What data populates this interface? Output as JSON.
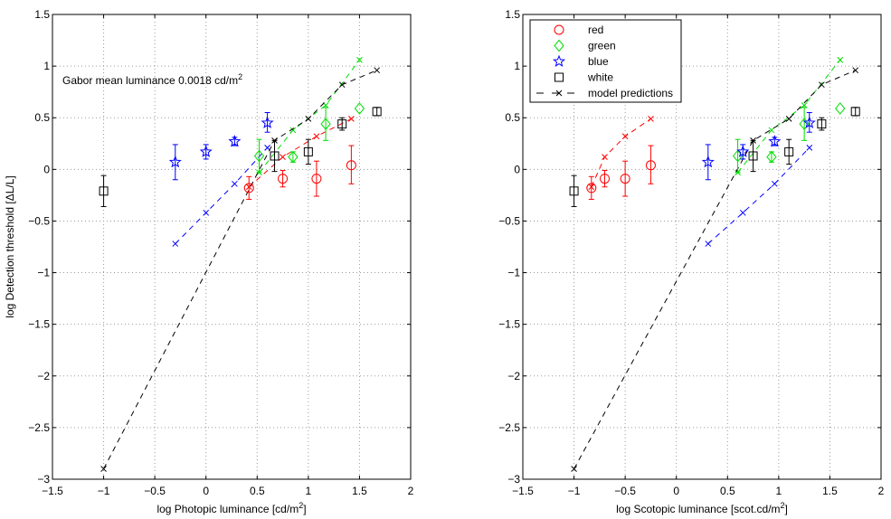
{
  "chart_data": [
    {
      "type": "scatter",
      "xlabel": "log Photopic luminance [cd/m",
      "xlabel_sup": "2",
      "xlabel_end": "]",
      "ylabel": "log Detection threshold [ΔL/L]",
      "annotation": "Gabor mean luminance 0.0018 cd/m",
      "annotation_sup": "2",
      "xlim": [
        -1.5,
        2
      ],
      "ylim": [
        -3,
        1.5
      ],
      "xticks": [
        "−1.5",
        "−1",
        "−0.5",
        "0",
        "0.5",
        "1",
        "1.5",
        "2"
      ],
      "xtick_values": [
        -1.5,
        -1,
        -0.5,
        0,
        0.5,
        1,
        1.5,
        2
      ],
      "yticks": [
        "1.5",
        "1",
        "0.5",
        "0",
        "−0.5",
        "−1",
        "−1.5",
        "−2",
        "−2.5",
        "−3"
      ],
      "ytick_values": [
        1.5,
        1,
        0.5,
        0,
        -0.5,
        -1,
        -1.5,
        -2,
        -2.5,
        -3
      ],
      "grid": true,
      "legend": false,
      "series": [
        {
          "name": "red",
          "color": "#ff0000",
          "marker": "circle",
          "x": [
            0.42,
            0.75,
            1.08,
            1.42
          ],
          "y": [
            -0.18,
            -0.09,
            -0.09,
            0.04
          ],
          "err_lo": [
            0.11,
            0.08,
            0.17,
            0.18
          ],
          "err_hi": [
            0.11,
            0.08,
            0.17,
            0.19
          ]
        },
        {
          "name": "green",
          "color": "#00dd00",
          "marker": "diamond",
          "x": [
            0.52,
            0.85,
            1.17,
            1.5
          ],
          "y": [
            0.13,
            0.12,
            0.44,
            0.59
          ],
          "err_lo": [
            0.16,
            0.05,
            0.16,
            0.0
          ],
          "err_hi": [
            0.16,
            0.05,
            0.16,
            0.0
          ]
        },
        {
          "name": "blue",
          "color": "#0000ff",
          "marker": "star",
          "x": [
            -0.3,
            0.0,
            0.28,
            0.6
          ],
          "y": [
            0.07,
            0.17,
            0.27,
            0.45
          ],
          "err_lo": [
            0.17,
            0.07,
            0.04,
            0.09
          ],
          "err_hi": [
            0.17,
            0.07,
            0.04,
            0.1
          ]
        },
        {
          "name": "white",
          "color": "#000000",
          "marker": "square",
          "x": [
            -1.0,
            0.67,
            1.0,
            1.33,
            1.67
          ],
          "y": [
            -0.21,
            0.13,
            0.17,
            0.44,
            0.56
          ],
          "err_lo": [
            0.15,
            0.15,
            0.12,
            0.06,
            0.04
          ],
          "err_hi": [
            0.15,
            0.15,
            0.12,
            0.06,
            0.04
          ]
        }
      ],
      "model": [
        {
          "name": "red-model",
          "color": "#ff0000",
          "x": [
            0.42,
            0.75,
            1.08,
            1.42
          ],
          "y": [
            -0.17,
            0.12,
            0.32,
            0.49
          ]
        },
        {
          "name": "green-model",
          "color": "#00dd00",
          "x": [
            0.52,
            0.85,
            1.17,
            1.5
          ],
          "y": [
            -0.03,
            0.38,
            0.62,
            1.06
          ]
        },
        {
          "name": "blue-model",
          "color": "#0000ff",
          "x": [
            -0.3,
            0.0,
            0.28,
            0.6
          ],
          "y": [
            -0.72,
            -0.42,
            -0.14,
            0.21
          ]
        },
        {
          "name": "white-model",
          "color": "#000000",
          "x": [
            -1.0,
            0.67,
            1.0,
            1.33,
            1.67
          ],
          "y": [
            -2.9,
            0.28,
            0.49,
            0.82,
            0.96
          ]
        }
      ]
    },
    {
      "type": "scatter",
      "xlabel": "log Scotopic luminance [scot.cd/m",
      "xlabel_sup": "2",
      "xlabel_end": "]",
      "xlim": [
        -1.5,
        2
      ],
      "ylim": [
        -3,
        1.5
      ],
      "xticks": [
        "−1.5",
        "−1",
        "−0.5",
        "0",
        "0.5",
        "1",
        "1.5",
        "2"
      ],
      "xtick_values": [
        -1.5,
        -1,
        -0.5,
        0,
        0.5,
        1,
        1.5,
        2
      ],
      "yticks": [
        "1.5",
        "1",
        "0.5",
        "0",
        "−0.5",
        "−1",
        "−1.5",
        "−2",
        "−2.5",
        "−3"
      ],
      "ytick_values": [
        1.5,
        1,
        0.5,
        0,
        -0.5,
        -1,
        -1.5,
        -2,
        -2.5,
        -3
      ],
      "grid": true,
      "legend": "top-left",
      "legend_entries": [
        {
          "label": "red",
          "color": "#ff0000",
          "marker": "circle"
        },
        {
          "label": "green",
          "color": "#00dd00",
          "marker": "diamond"
        },
        {
          "label": "blue",
          "color": "#0000ff",
          "marker": "star"
        },
        {
          "label": "white",
          "color": "#000000",
          "marker": "square"
        },
        {
          "label": "model predictions",
          "color": "#000000",
          "marker": "x-dashed"
        }
      ],
      "series": [
        {
          "name": "red",
          "color": "#ff0000",
          "marker": "circle",
          "x": [
            -0.83,
            -0.7,
            -0.5,
            -0.25
          ],
          "y": [
            -0.18,
            -0.09,
            -0.09,
            0.04
          ],
          "err_lo": [
            0.11,
            0.08,
            0.17,
            0.18
          ],
          "err_hi": [
            0.11,
            0.08,
            0.17,
            0.19
          ]
        },
        {
          "name": "green",
          "color": "#00dd00",
          "marker": "diamond",
          "x": [
            0.6,
            0.93,
            1.25,
            1.6
          ],
          "y": [
            0.13,
            0.12,
            0.44,
            0.59
          ],
          "err_lo": [
            0.16,
            0.05,
            0.16,
            0.0
          ],
          "err_hi": [
            0.16,
            0.05,
            0.16,
            0.0
          ]
        },
        {
          "name": "blue",
          "color": "#0000ff",
          "marker": "star",
          "x": [
            0.31,
            0.65,
            0.96,
            1.3
          ],
          "y": [
            0.07,
            0.17,
            0.27,
            0.45
          ],
          "err_lo": [
            0.17,
            0.07,
            0.04,
            0.09
          ],
          "err_hi": [
            0.17,
            0.07,
            0.04,
            0.1
          ]
        },
        {
          "name": "white",
          "color": "#000000",
          "marker": "square",
          "x": [
            -1.0,
            0.75,
            1.1,
            1.42,
            1.75
          ],
          "y": [
            -0.21,
            0.13,
            0.17,
            0.44,
            0.56
          ],
          "err_lo": [
            0.15,
            0.15,
            0.12,
            0.06,
            0.04
          ],
          "err_hi": [
            0.15,
            0.15,
            0.12,
            0.06,
            0.04
          ]
        }
      ],
      "model": [
        {
          "name": "red-model",
          "color": "#ff0000",
          "x": [
            -0.83,
            -0.7,
            -0.5,
            -0.25
          ],
          "y": [
            -0.17,
            0.12,
            0.32,
            0.49
          ]
        },
        {
          "name": "green-model",
          "color": "#00dd00",
          "x": [
            0.6,
            0.93,
            1.25,
            1.6
          ],
          "y": [
            -0.03,
            0.38,
            0.62,
            1.06
          ]
        },
        {
          "name": "blue-model",
          "color": "#0000ff",
          "x": [
            0.31,
            0.65,
            0.96,
            1.3
          ],
          "y": [
            -0.72,
            -0.42,
            -0.14,
            0.21
          ]
        },
        {
          "name": "white-model",
          "color": "#000000",
          "x": [
            -1.0,
            0.75,
            1.1,
            1.42,
            1.75
          ],
          "y": [
            -2.9,
            0.28,
            0.49,
            0.82,
            0.96
          ]
        }
      ]
    }
  ]
}
